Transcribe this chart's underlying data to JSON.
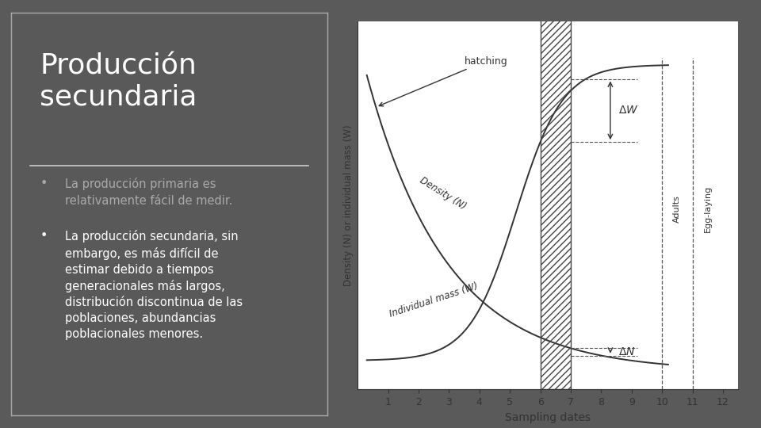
{
  "slide_bg": "#5a5a5a",
  "left_panel_bg": "#595959",
  "left_panel_border": "#aaaaaa",
  "title": "Producción\nsecundaria",
  "title_color": "#ffffff",
  "title_fontsize": 26,
  "separator_color": "#cccccc",
  "bullet1": "La producción primaria es\nrelativamente fácil de medir.",
  "bullet1_color": "#aaaaaa",
  "bullet2_line1": "La producción secundaria, sin",
  "bullet2_line2": "embargo, es más difícil de",
  "bullet2_line3": "estimar debido a tiempos",
  "bullet2_line4": "generacionales más largos,",
  "bullet2_line5": "distribución discontinua de las",
  "bullet2_line6": "poblaciones, abundancias",
  "bullet2_line7": "poblacionales menores.",
  "bullet2_color": "#ffffff",
  "bullet_fontsize": 10.5,
  "xlabel": "Sampling dates",
  "ylabel": "Density (N) or individual mass (W)",
  "curve_color": "#333333",
  "hatch_color": "#444444",
  "dashed_color": "#555555"
}
